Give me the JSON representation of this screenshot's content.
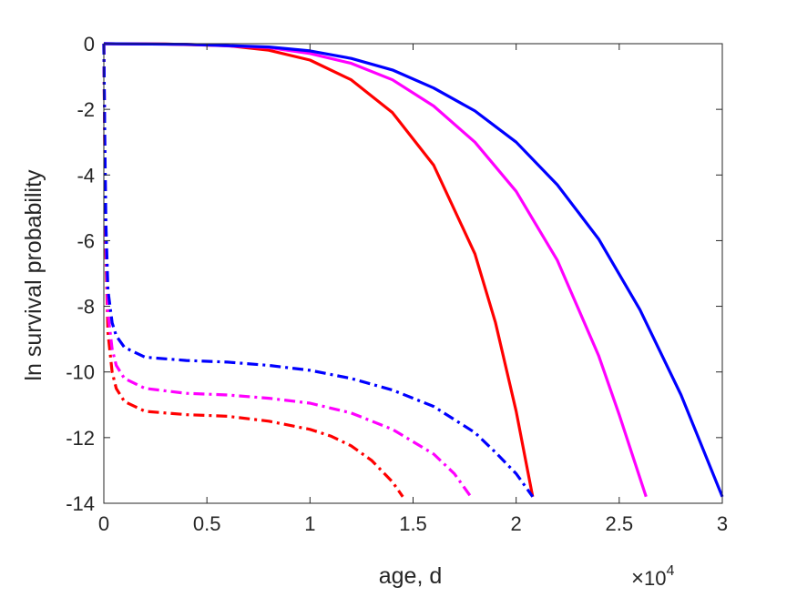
{
  "chart_data": {
    "type": "line",
    "title": "",
    "xlabel": "age, d",
    "ylabel": "ln survival probability",
    "x_multiplier": {
      "base": "10",
      "exponent": "4",
      "times": "×"
    },
    "xlim": [
      0,
      30000
    ],
    "ylim": [
      -14,
      0
    ],
    "xticks": [
      0,
      5000,
      10000,
      15000,
      20000,
      25000,
      30000
    ],
    "xtick_labels": [
      "0",
      "0.5",
      "1",
      "1.5",
      "2",
      "2.5",
      "3"
    ],
    "yticks": [
      0,
      -2,
      -4,
      -6,
      -8,
      -10,
      -12,
      -14
    ],
    "ytick_labels": [
      "0",
      "-2",
      "-4",
      "-6",
      "-8",
      "-10",
      "-12",
      "-14"
    ],
    "grid": false,
    "box": true,
    "series": [
      {
        "color": "#ff0000",
        "style": "solid",
        "x": [
          0,
          3000,
          6000,
          8000,
          10000,
          12000,
          14000,
          16000,
          18000,
          19000,
          20000,
          20800
        ],
        "y": [
          0,
          -0.01,
          -0.06,
          -0.2,
          -0.5,
          -1.1,
          -2.1,
          -3.7,
          -6.4,
          -8.5,
          -11.2,
          -13.8
        ]
      },
      {
        "color": "#ff00ff",
        "style": "solid",
        "x": [
          0,
          4000,
          8000,
          10000,
          12000,
          14000,
          16000,
          18000,
          20000,
          22000,
          24000,
          25000,
          26300
        ],
        "y": [
          0,
          -0.02,
          -0.12,
          -0.3,
          -0.6,
          -1.1,
          -1.9,
          -3.0,
          -4.5,
          -6.6,
          -9.5,
          -11.3,
          -13.8
        ]
      },
      {
        "color": "#0000ff",
        "style": "solid",
        "x": [
          0,
          4000,
          8000,
          10000,
          12000,
          14000,
          16000,
          18000,
          20000,
          22000,
          24000,
          26000,
          28000,
          30000
        ],
        "y": [
          0,
          -0.02,
          -0.1,
          -0.22,
          -0.45,
          -0.8,
          -1.35,
          -2.05,
          -3.0,
          -4.3,
          -5.95,
          -8.1,
          -10.7,
          -13.8
        ]
      },
      {
        "color": "#ff0000",
        "style": "dashdot",
        "x": [
          0,
          50,
          100,
          200,
          400,
          600,
          1000,
          2000,
          4000,
          6000,
          8000,
          10000,
          11000,
          12000,
          13000,
          14000,
          14500
        ],
        "y": [
          0,
          -3.5,
          -6.5,
          -8.8,
          -10.0,
          -10.5,
          -10.9,
          -11.2,
          -11.3,
          -11.35,
          -11.5,
          -11.75,
          -11.95,
          -12.25,
          -12.7,
          -13.35,
          -13.8
        ]
      },
      {
        "color": "#ff00ff",
        "style": "dashdot",
        "x": [
          0,
          50,
          100,
          200,
          400,
          600,
          1000,
          2000,
          4000,
          6000,
          8000,
          10000,
          12000,
          14000,
          16000,
          17000,
          17800
        ],
        "y": [
          0,
          -3.3,
          -6.0,
          -8.2,
          -9.3,
          -9.8,
          -10.2,
          -10.5,
          -10.65,
          -10.7,
          -10.8,
          -10.95,
          -11.25,
          -11.75,
          -12.5,
          -13.1,
          -13.8
        ]
      },
      {
        "color": "#0000ff",
        "style": "dashdot",
        "x": [
          0,
          50,
          100,
          200,
          400,
          600,
          1000,
          2000,
          4000,
          6000,
          8000,
          10000,
          12000,
          14000,
          16000,
          18000,
          19000,
          20000,
          20800
        ],
        "y": [
          0,
          -3.0,
          -5.5,
          -7.5,
          -8.5,
          -8.9,
          -9.25,
          -9.55,
          -9.65,
          -9.7,
          -9.8,
          -9.95,
          -10.2,
          -10.55,
          -11.05,
          -11.85,
          -12.45,
          -13.1,
          -13.8
        ]
      }
    ]
  }
}
